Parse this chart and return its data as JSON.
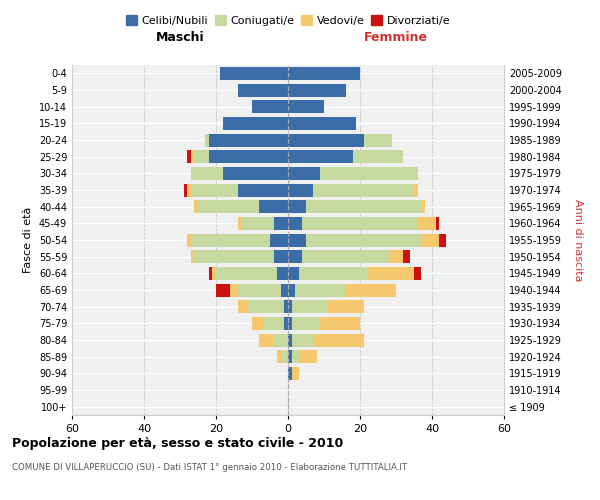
{
  "age_groups": [
    "100+",
    "95-99",
    "90-94",
    "85-89",
    "80-84",
    "75-79",
    "70-74",
    "65-69",
    "60-64",
    "55-59",
    "50-54",
    "45-49",
    "40-44",
    "35-39",
    "30-34",
    "25-29",
    "20-24",
    "15-19",
    "10-14",
    "5-9",
    "0-4"
  ],
  "birth_years": [
    "≤ 1909",
    "1910-1914",
    "1915-1919",
    "1920-1924",
    "1925-1929",
    "1930-1934",
    "1935-1939",
    "1940-1944",
    "1945-1949",
    "1950-1954",
    "1955-1959",
    "1960-1964",
    "1965-1969",
    "1970-1974",
    "1975-1979",
    "1980-1984",
    "1985-1989",
    "1990-1994",
    "1995-1999",
    "2000-2004",
    "2005-2009"
  ],
  "maschi": {
    "celibi": [
      0,
      0,
      0,
      0,
      0,
      1,
      1,
      2,
      3,
      4,
      5,
      4,
      8,
      14,
      18,
      22,
      22,
      18,
      10,
      14,
      19
    ],
    "coniugati": [
      0,
      0,
      0,
      2,
      4,
      6,
      10,
      12,
      17,
      22,
      22,
      9,
      17,
      13,
      9,
      4,
      1,
      0,
      0,
      0,
      0
    ],
    "vedovi": [
      0,
      0,
      0,
      1,
      4,
      3,
      3,
      2,
      1,
      1,
      1,
      1,
      1,
      1,
      0,
      1,
      0,
      0,
      0,
      0,
      0
    ],
    "divorziati": [
      0,
      0,
      0,
      0,
      0,
      0,
      0,
      4,
      1,
      0,
      0,
      0,
      0,
      1,
      0,
      1,
      0,
      0,
      0,
      0,
      0
    ]
  },
  "femmine": {
    "nubili": [
      0,
      0,
      1,
      1,
      1,
      1,
      1,
      2,
      3,
      4,
      5,
      4,
      5,
      7,
      9,
      18,
      21,
      19,
      10,
      16,
      20
    ],
    "coniugate": [
      0,
      0,
      0,
      2,
      6,
      8,
      10,
      14,
      19,
      24,
      32,
      32,
      32,
      28,
      27,
      14,
      8,
      0,
      0,
      0,
      0
    ],
    "vedove": [
      0,
      0,
      2,
      5,
      14,
      11,
      10,
      14,
      13,
      4,
      5,
      5,
      1,
      1,
      0,
      0,
      0,
      0,
      0,
      0,
      0
    ],
    "divorziate": [
      0,
      0,
      0,
      0,
      0,
      0,
      0,
      0,
      2,
      2,
      2,
      1,
      0,
      0,
      0,
      0,
      0,
      0,
      0,
      0,
      0
    ]
  },
  "colors": {
    "celibi": "#3b6ea8",
    "coniugati": "#c5d9a0",
    "vedovi": "#f5c86e",
    "divorziati": "#cc1111"
  },
  "xlim": 60,
  "title": "Popolazione per età, sesso e stato civile - 2010",
  "subtitle": "COMUNE DI VILLAPERUCCIO (SU) - Dati ISTAT 1° gennaio 2010 - Elaborazione TUTTITALIA.IT",
  "xlabel_left": "Maschi",
  "xlabel_right": "Femmine",
  "ylabel_left": "Fasce di età",
  "ylabel_right": "Anni di nascita",
  "legend_labels": [
    "Celibi/Nubili",
    "Coniugati/e",
    "Vedovi/e",
    "Divorziati/e"
  ],
  "bg_color": "#ffffff",
  "plot_bg": "#f0f0f0"
}
